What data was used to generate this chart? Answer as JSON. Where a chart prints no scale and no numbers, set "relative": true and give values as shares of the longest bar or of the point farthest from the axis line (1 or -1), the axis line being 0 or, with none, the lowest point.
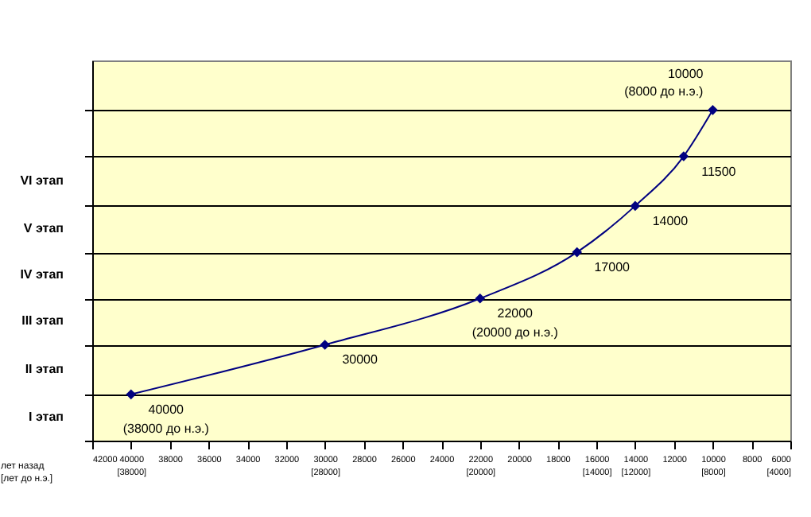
{
  "chart_data": {
    "type": "line",
    "relative": true,
    "xlabel": "лет назад\n[лет до н.э.]",
    "x": [
      40000,
      30000,
      22000,
      17000,
      14000,
      11500,
      10000
    ],
    "values": [
      0.14,
      0.29,
      0.43,
      0.57,
      0.71,
      0.86,
      1
    ],
    "color": "#000080",
    "marker": "diamond",
    "line_style": "solid",
    "grid": "y",
    "xlim": [
      42000,
      6000
    ],
    "xticks": [
      42000,
      {
        "value": 40000,
        "label": "40000\n[38000]"
      },
      38000,
      36000,
      34000,
      32000,
      {
        "value": 30000,
        "label": "30000\n[28000]"
      },
      28000,
      26000,
      24000,
      {
        "value": 22000,
        "label": "22000\n[20000]"
      },
      20000,
      18000,
      {
        "value": 16000,
        "label": "16000\n[14000]"
      },
      {
        "value": 14000,
        "label": "14000\n[12000]"
      },
      12000,
      {
        "value": 10000,
        "label": "10000\n[8000]"
      },
      8000,
      {
        "value": 6000,
        "label": "6000\n[4000]"
      }
    ],
    "annotations": [
      "I этап",
      "II этап",
      "III этап",
      "IV этап",
      "V этап",
      "VI этап",
      {
        "text": "40000\n(38000 до н.э.)",
        "x": 40000,
        "y": 0.14
      },
      {
        "text": "30000",
        "x": 30000,
        "y": 0.29
      },
      {
        "text": "22000\n(20000 до н.э.)",
        "x": 22000,
        "y": 0.43
      },
      {
        "text": "17000",
        "x": 17000,
        "y": 0.57
      },
      {
        "text": "14000",
        "x": 14000,
        "y": 0.71
      },
      {
        "text": "11500",
        "x": 11500,
        "y": 0.86
      },
      {
        "text": "10000\n(8000 до н.э.)",
        "x": 10000,
        "y": 1
      }
    ]
  }
}
